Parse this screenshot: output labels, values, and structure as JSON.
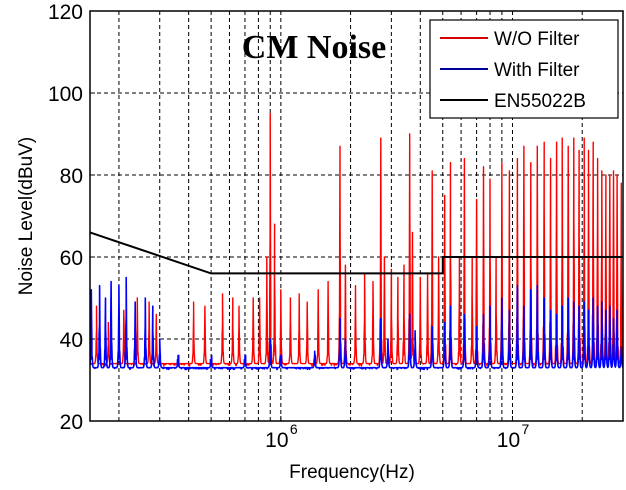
{
  "chart_data": {
    "type": "line",
    "title": "CM Noise",
    "xlabel": "Frequency(Hz)",
    "ylabel": "Noise Level(dBuV)",
    "xscale": "log",
    "xlim": [
      150000,
      30000000
    ],
    "ylim": [
      20,
      120
    ],
    "grid": true,
    "legend_position": "top-right",
    "yticks": [
      20,
      40,
      60,
      80,
      100,
      120
    ],
    "ytick_labels": [
      "20",
      "40",
      "60",
      "80",
      "100",
      "120"
    ],
    "xticks": [
      1000000,
      10000000
    ],
    "xtick_labels": [
      {
        "base": "10",
        "exp": "6"
      },
      {
        "base": "10",
        "exp": "7"
      }
    ],
    "series": [
      {
        "name": "W/O Filter",
        "color": "#ff0000",
        "noise_floor": 34,
        "peaks": [
          [
            160000,
            48
          ],
          [
            180000,
            44
          ],
          [
            210000,
            47
          ],
          [
            240000,
            50
          ],
          [
            270000,
            49
          ],
          [
            290000,
            46
          ],
          [
            420000,
            49
          ],
          [
            470000,
            48
          ],
          [
            560000,
            51
          ],
          [
            620000,
            50
          ],
          [
            660000,
            48
          ],
          [
            760000,
            50
          ],
          [
            810000,
            50
          ],
          [
            870000,
            60
          ],
          [
            900000,
            95
          ],
          [
            940000,
            68
          ],
          [
            1000000,
            52
          ],
          [
            1100000,
            50
          ],
          [
            1200000,
            51
          ],
          [
            1300000,
            49
          ],
          [
            1450000,
            52
          ],
          [
            1600000,
            54
          ],
          [
            1800000,
            87
          ],
          [
            1900000,
            58
          ],
          [
            2100000,
            53
          ],
          [
            2300000,
            56
          ],
          [
            2500000,
            54
          ],
          [
            2700000,
            89
          ],
          [
            2800000,
            60
          ],
          [
            3000000,
            57
          ],
          [
            3200000,
            55
          ],
          [
            3400000,
            58
          ],
          [
            3600000,
            90
          ],
          [
            3700000,
            66
          ],
          [
            4000000,
            55
          ],
          [
            4300000,
            56
          ],
          [
            4500000,
            81
          ],
          [
            4800000,
            60
          ],
          [
            5100000,
            75
          ],
          [
            5400000,
            83
          ],
          [
            5900000,
            60
          ],
          [
            6200000,
            84
          ],
          [
            6700000,
            60
          ],
          [
            7000000,
            74
          ],
          [
            7500000,
            82
          ],
          [
            8000000,
            79
          ],
          [
            8500000,
            60
          ],
          [
            9000000,
            83
          ],
          [
            9700000,
            81
          ],
          [
            10500000,
            84
          ],
          [
            11200000,
            87
          ],
          [
            12000000,
            83
          ],
          [
            12800000,
            87
          ],
          [
            13700000,
            88
          ],
          [
            14600000,
            84
          ],
          [
            15500000,
            88
          ],
          [
            16400000,
            89
          ],
          [
            17400000,
            87
          ],
          [
            18400000,
            89
          ],
          [
            19400000,
            86
          ],
          [
            20400000,
            89
          ],
          [
            21300000,
            86
          ],
          [
            22300000,
            88
          ],
          [
            23300000,
            84
          ],
          [
            24300000,
            81
          ],
          [
            25300000,
            80
          ],
          [
            26300000,
            80
          ],
          [
            27300000,
            81
          ],
          [
            28300000,
            80
          ],
          [
            29500000,
            78
          ]
        ]
      },
      {
        "name": "With Filter",
        "color": "#0000ff",
        "noise_floor": 33,
        "peaks": [
          [
            152000,
            52
          ],
          [
            165000,
            53
          ],
          [
            175000,
            50
          ],
          [
            185000,
            54
          ],
          [
            200000,
            53
          ],
          [
            215000,
            55
          ],
          [
            235000,
            49
          ],
          [
            260000,
            50
          ],
          [
            280000,
            48
          ],
          [
            300000,
            40
          ],
          [
            360000,
            36
          ],
          [
            500000,
            35
          ],
          [
            700000,
            36
          ],
          [
            900000,
            40
          ],
          [
            1000000,
            36
          ],
          [
            1400000,
            37
          ],
          [
            1800000,
            45
          ],
          [
            1900000,
            40
          ],
          [
            2700000,
            45
          ],
          [
            2900000,
            40
          ],
          [
            3600000,
            46
          ],
          [
            3800000,
            42
          ],
          [
            4500000,
            43
          ],
          [
            5100000,
            44
          ],
          [
            5400000,
            48
          ],
          [
            6200000,
            46
          ],
          [
            7000000,
            43
          ],
          [
            7500000,
            46
          ],
          [
            8000000,
            48
          ],
          [
            9000000,
            50
          ],
          [
            9700000,
            47
          ],
          [
            10500000,
            53
          ],
          [
            11200000,
            48
          ],
          [
            12000000,
            52
          ],
          [
            12800000,
            53
          ],
          [
            13700000,
            50
          ],
          [
            14600000,
            47
          ],
          [
            15500000,
            46
          ],
          [
            16400000,
            48
          ],
          [
            17400000,
            50
          ],
          [
            18400000,
            49
          ],
          [
            19400000,
            48
          ],
          [
            20400000,
            49
          ],
          [
            21300000,
            47
          ],
          [
            22300000,
            50
          ],
          [
            23300000,
            48
          ],
          [
            24300000,
            49
          ],
          [
            25300000,
            47
          ],
          [
            26300000,
            48
          ],
          [
            27300000,
            45
          ],
          [
            28300000,
            47
          ],
          [
            29500000,
            38
          ]
        ]
      },
      {
        "name": "EN55022B",
        "color": "#000000",
        "points": [
          [
            150000,
            66
          ],
          [
            500000,
            56
          ],
          [
            5000000,
            56
          ],
          [
            5000000,
            60
          ],
          [
            30000000,
            60
          ]
        ]
      }
    ]
  }
}
